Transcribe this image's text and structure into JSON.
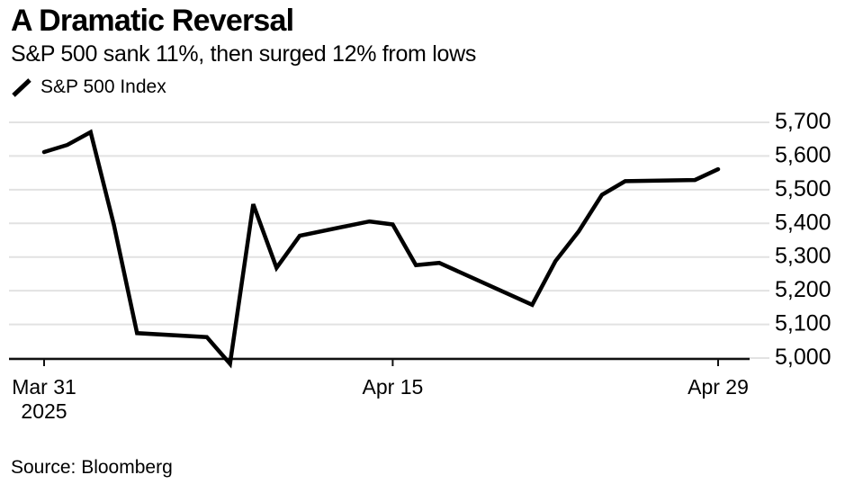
{
  "header": {
    "title": "A Dramatic Reversal",
    "subtitle": "S&P 500 sank 11%, then surged 12% from lows"
  },
  "legend": {
    "label": "S&P 500 Index"
  },
  "source": {
    "text": "Source: Bloomberg"
  },
  "chart_data": {
    "type": "line",
    "title": "A Dramatic Reversal",
    "subtitle": "S&P 500 sank 11%, then surged 12% from lows",
    "legend_entries": [
      "S&P 500 Index"
    ],
    "legend_position": "top-left",
    "grid": "horizontal",
    "line_color": "#000000",
    "grid_color": "#e2e2e2",
    "axis_color": "#111111",
    "x_axis": {
      "unit": "calendar-day",
      "range_days": [
        0,
        29
      ],
      "ticks": [
        {
          "label": "Mar 31",
          "sublabel": "2025",
          "day": 0
        },
        {
          "label": "Apr 15",
          "day": 15
        },
        {
          "label": "Apr 29",
          "day": 29
        }
      ]
    },
    "y_axis": {
      "side": "right",
      "range": [
        5000,
        5700
      ],
      "ticks": [
        5700,
        5600,
        5500,
        5400,
        5300,
        5200,
        5100,
        5000
      ],
      "tick_labels": [
        "5,700",
        "5,600",
        "5,500",
        "5,400",
        "5,300",
        "5,200",
        "5,100",
        "5,000"
      ]
    },
    "series": [
      {
        "name": "S&P 500 Index",
        "color": "#000000",
        "points": [
          {
            "date": "Mar 31",
            "day": 0,
            "close": 5611.85
          },
          {
            "date": "Apr 1",
            "day": 1,
            "close": 5633.07
          },
          {
            "date": "Apr 2",
            "day": 2,
            "close": 5670.97
          },
          {
            "date": "Apr 3",
            "day": 3,
            "close": 5396.52
          },
          {
            "date": "Apr 4",
            "day": 4,
            "close": 5074.08
          },
          {
            "date": "Apr 7",
            "day": 7,
            "close": 5062.25
          },
          {
            "date": "Apr 8",
            "day": 8,
            "close": 4982.77
          },
          {
            "date": "Apr 9",
            "day": 9,
            "close": 5456.9
          },
          {
            "date": "Apr 10",
            "day": 10,
            "close": 5268.05
          },
          {
            "date": "Apr 11",
            "day": 11,
            "close": 5363.36
          },
          {
            "date": "Apr 14",
            "day": 14,
            "close": 5405.97
          },
          {
            "date": "Apr 15",
            "day": 15,
            "close": 5396.63
          },
          {
            "date": "Apr 16",
            "day": 16,
            "close": 5275.7
          },
          {
            "date": "Apr 17",
            "day": 17,
            "close": 5282.7
          },
          {
            "date": "Apr 21",
            "day": 21,
            "close": 5158.2
          },
          {
            "date": "Apr 22",
            "day": 22,
            "close": 5287.76
          },
          {
            "date": "Apr 23",
            "day": 23,
            "close": 5375.86
          },
          {
            "date": "Apr 24",
            "day": 24,
            "close": 5484.77
          },
          {
            "date": "Apr 25",
            "day": 25,
            "close": 5525.21
          },
          {
            "date": "Apr 28",
            "day": 28,
            "close": 5528.75
          },
          {
            "date": "Apr 29",
            "day": 29,
            "close": 5560.83
          }
        ]
      }
    ]
  }
}
